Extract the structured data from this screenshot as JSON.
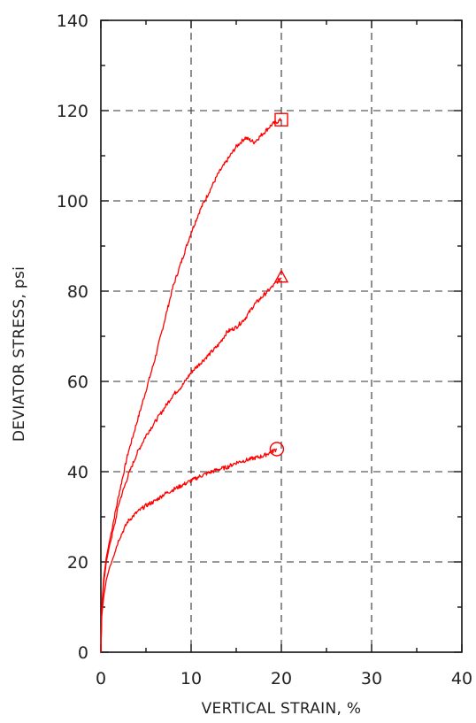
{
  "chart_data": {
    "type": "line",
    "title": "",
    "xlabel": "VERTICAL STRAIN, %",
    "ylabel": "DEVIATOR STRESS, psi",
    "xlim": [
      0,
      40
    ],
    "ylim": [
      0,
      140
    ],
    "x_ticks": [
      0,
      10,
      20,
      30,
      40
    ],
    "y_ticks": [
      0,
      20,
      40,
      60,
      80,
      100,
      120,
      140
    ],
    "grid": "dashed",
    "line_color": "#ff0000",
    "series": [
      {
        "marker": "square",
        "x": [
          0,
          0.1,
          0.3,
          0.6,
          1,
          1.5,
          2,
          3,
          4,
          5,
          6,
          7,
          8,
          9,
          10,
          11,
          12,
          13,
          14,
          15,
          16,
          17,
          18,
          19,
          19.5,
          20
        ],
        "y": [
          0,
          10,
          16,
          21,
          25,
          30,
          35,
          44,
          51,
          58,
          65,
          73,
          81,
          87,
          93,
          98,
          102,
          106,
          109,
          112,
          114,
          113,
          115,
          117,
          117.5,
          118
        ]
      },
      {
        "marker": "triangle",
        "x": [
          0,
          0.1,
          0.3,
          0.6,
          1,
          1.5,
          2,
          3,
          4,
          5,
          6,
          7,
          8,
          9,
          10,
          11,
          12,
          13,
          14,
          15,
          16,
          17,
          18,
          19,
          19.5,
          20
        ],
        "y": [
          0,
          9,
          15,
          20,
          24,
          28,
          33,
          39,
          44,
          48,
          51,
          54,
          57,
          59,
          62,
          64,
          66,
          68,
          71,
          72,
          74,
          77,
          79,
          81,
          82,
          83
        ]
      },
      {
        "marker": "circle",
        "x": [
          0,
          0.1,
          0.3,
          0.6,
          1,
          1.5,
          2,
          3,
          4,
          5,
          6,
          7,
          8,
          9,
          10,
          11,
          12,
          13,
          14,
          15,
          16,
          17,
          18,
          19,
          19.5
        ],
        "y": [
          0,
          8,
          12,
          16,
          19,
          22,
          25,
          29,
          31,
          32.5,
          33.5,
          35,
          36,
          37,
          38,
          39,
          39.8,
          40.5,
          41,
          42,
          42.5,
          43,
          43.5,
          44.5,
          45
        ]
      }
    ]
  }
}
